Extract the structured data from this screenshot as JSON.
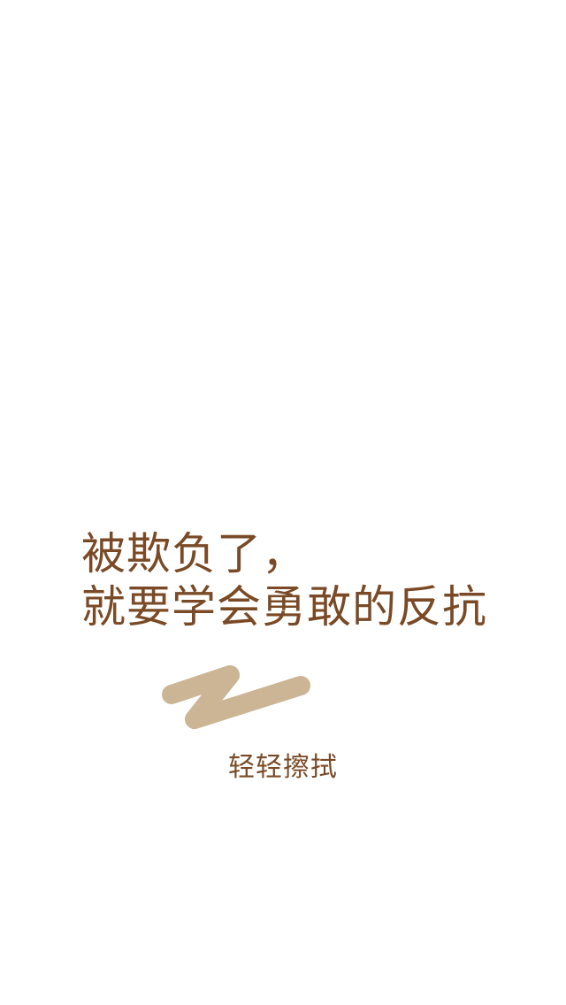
{
  "quote": {
    "line1": "被欺负了，",
    "line2": "就要学会勇敢的反抗"
  },
  "swipe_mark": {
    "icon": "scribble-z-icon",
    "color": "#cbb595"
  },
  "hint": {
    "label": "轻轻擦拭"
  },
  "colors": {
    "background": "#ffffff",
    "text": "#7a4a26",
    "accent": "#cbb595"
  }
}
